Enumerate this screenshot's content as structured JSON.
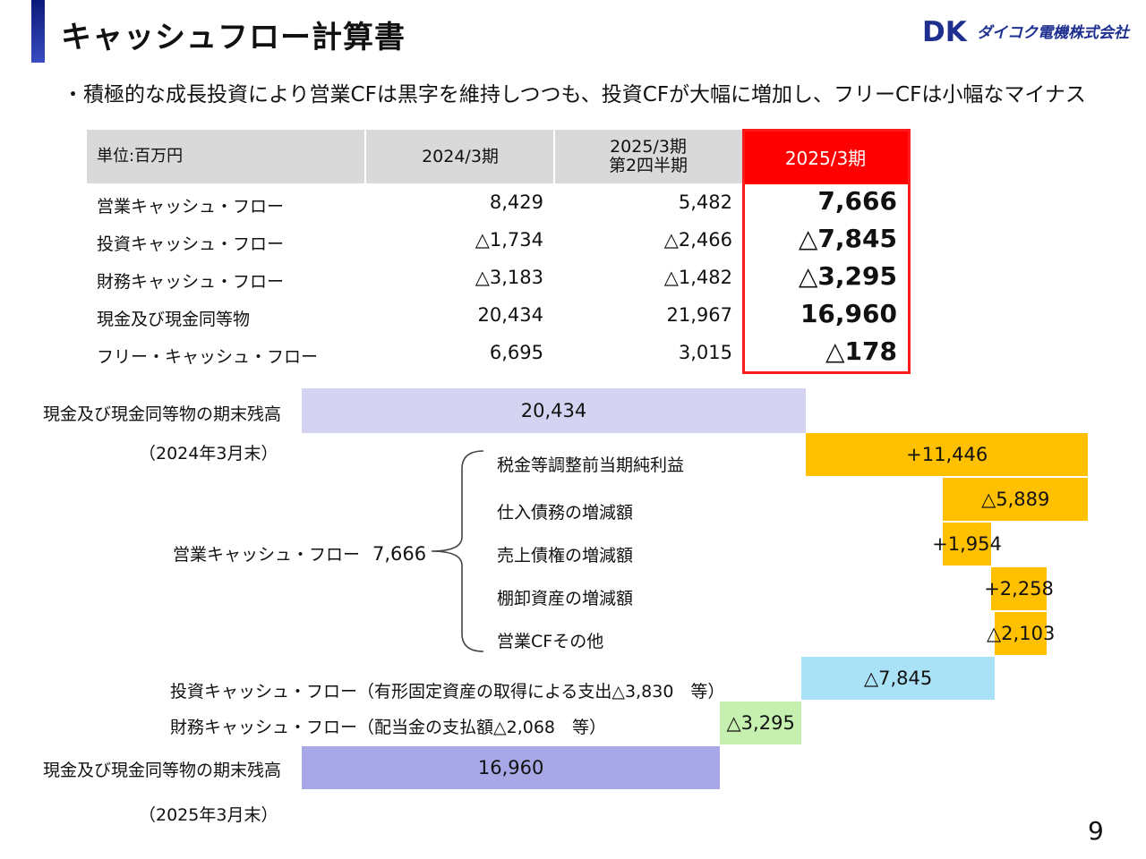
{
  "header": {
    "title": "キャッシュフロー計算書",
    "logo_text": "ダイコク電機株式会社",
    "logo_mark": "DK"
  },
  "subtitle": "・積極的な成長投資により営業CFは黒字を維持しつつも、投資CFが大幅に増加し、フリーCFは小幅なマイナス",
  "table": {
    "unit_label": "単位:百万円",
    "columns": [
      "2024/3期",
      "2025/3期\n第2四半期",
      "2025/3期"
    ],
    "col2_line1": "2025/3期",
    "col2_line2": "第2四半期",
    "rows": [
      {
        "label": "営業キャッシュ・フロー",
        "values": [
          "8,429",
          "5,482",
          "7,666"
        ]
      },
      {
        "label": "投資キャッシュ・フロー",
        "values": [
          "△1,734",
          "△2,466",
          "△7,845"
        ]
      },
      {
        "label": "財務キャッシュ・フロー",
        "values": [
          "△3,183",
          "△1,482",
          "△3,295"
        ]
      },
      {
        "label": "現金及び現金同等物",
        "values": [
          "20,434",
          "21,967",
          "16,960"
        ]
      },
      {
        "label": "フリー・キャッシュ・フロー",
        "values": [
          "6,695",
          "3,015",
          "△178"
        ]
      }
    ],
    "highlight_color": "#ff0000"
  },
  "waterfall": {
    "opening_label": "現金及び現金同等物の期末残高",
    "opening_period": "（2024年3月末）",
    "operating_group_label": "営業キャッシュ・フロー",
    "operating_group_value": "7,666",
    "operating_items": [
      {
        "label": "税金等調整前当期純利益",
        "value_text": "+11,446"
      },
      {
        "label": "仕入債務の増減額",
        "value_text": "△5,889"
      },
      {
        "label": "売上債権の増減額",
        "value_text": "+1,954"
      },
      {
        "label": "棚卸資産の増減額",
        "value_text": "+2,258"
      },
      {
        "label": "営業CFその他",
        "value_text": "△2,103"
      }
    ],
    "investing_label": "投資キャッシュ・フロー（有形固定資産の取得による支出△3,830　等）",
    "investing_value_text": "△7,845",
    "financing_label": "財務キャッシュ・フロー（配当金の支払額△2,068　等）",
    "financing_value_text": "△3,295",
    "closing_label": "現金及び現金同等物の期末残高",
    "closing_period": "（2025年3月末）",
    "opening_value_text": "20,434",
    "closing_value_text": "16,960",
    "colors": {
      "opening": "#d4d4f2",
      "operating": "#ffc000",
      "investing": "#a9e2f7",
      "financing": "#c6f0b0",
      "closing": "#a8a8e6"
    }
  },
  "chart_data": {
    "type": "bar",
    "subtype": "waterfall",
    "unit": "百万円",
    "steps": [
      {
        "name": "現金及び現金同等物の期末残高（2024年3月末）",
        "value": 20434,
        "kind": "total"
      },
      {
        "name": "税金等調整前当期純利益",
        "value": 11446,
        "kind": "delta"
      },
      {
        "name": "仕入債務の増減額",
        "value": -5889,
        "kind": "delta"
      },
      {
        "name": "売上債権の増減額",
        "value": 1954,
        "kind": "delta"
      },
      {
        "name": "棚卸資産の増減額",
        "value": 2258,
        "kind": "delta"
      },
      {
        "name": "営業CFその他",
        "value": -2103,
        "kind": "delta"
      },
      {
        "name": "投資キャッシュ・フロー",
        "value": -7845,
        "kind": "delta"
      },
      {
        "name": "財務キャッシュ・フロー",
        "value": -3295,
        "kind": "delta"
      },
      {
        "name": "現金及び現金同等物の期末残高（2025年3月末）",
        "value": 16960,
        "kind": "total"
      }
    ]
  },
  "page_number": "9"
}
